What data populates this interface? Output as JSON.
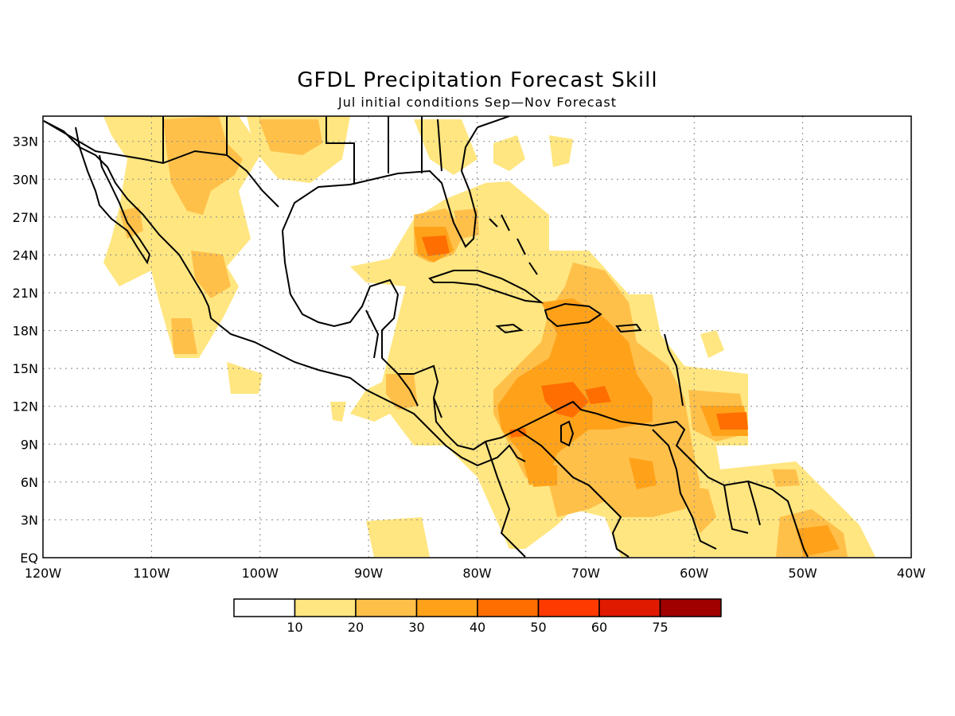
{
  "header": {
    "title": "GFDL Precipitation Forecast Skill",
    "subtitle": "Jul initial conditions  Sep—Nov Forecast"
  },
  "map": {
    "lon_labels": [
      "120W",
      "110W",
      "100W",
      "90W",
      "80W",
      "70W",
      "60W",
      "50W",
      "40W"
    ],
    "lat_labels": [
      "EQ",
      "3N",
      "6N",
      "9N",
      "12N",
      "15N",
      "18N",
      "21N",
      "24N",
      "27N",
      "30N",
      "33N"
    ],
    "lon_range": [
      -120,
      -40
    ],
    "lat_range": [
      0,
      35
    ],
    "grid": "dotted"
  },
  "colorbar": {
    "colors": [
      "#ffffff",
      "#ffe680",
      "#ffc04a",
      "#ffa21a",
      "#ff6e00",
      "#ff3a00",
      "#e01a00",
      "#a00000"
    ],
    "labels": [
      "10",
      "20",
      "30",
      "40",
      "50",
      "60",
      "75"
    ]
  }
}
